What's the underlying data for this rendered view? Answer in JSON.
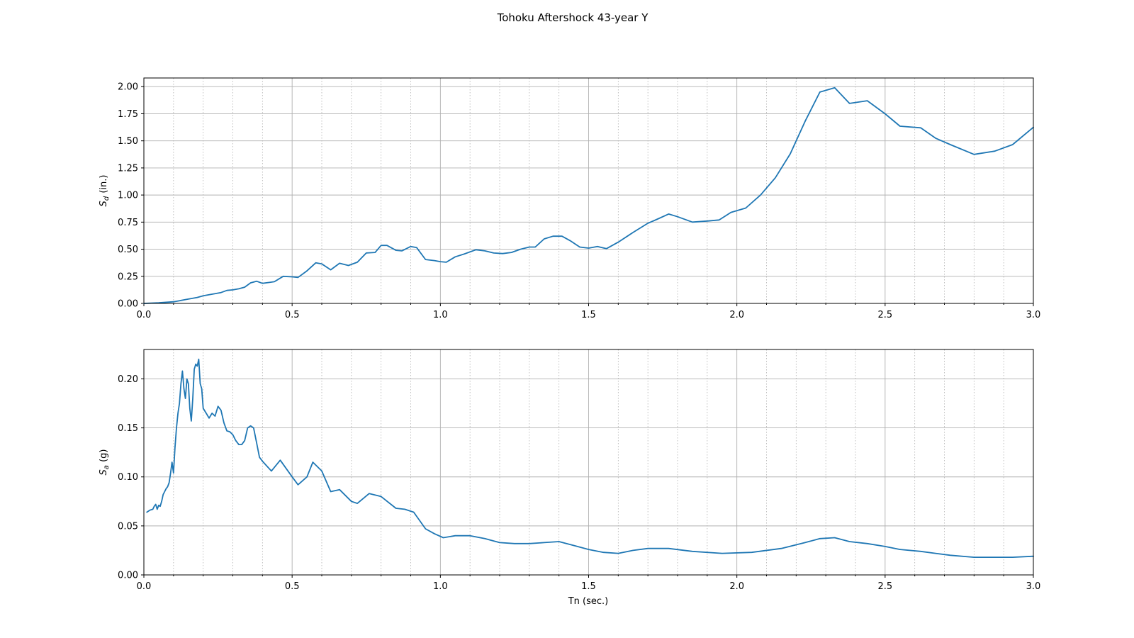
{
  "figure": {
    "title": "Tohoku Aftershock 43-year Y"
  },
  "chart_data": [
    {
      "type": "line",
      "ylabel_symbol": "S",
      "ylabel_sub": "d",
      "ylabel_unit": " (in.)",
      "xlabel": "",
      "xlim": [
        0.0,
        3.0
      ],
      "ylim": [
        0.0,
        2.08
      ],
      "xticks": [
        0.0,
        0.5,
        1.0,
        1.5,
        2.0,
        2.5,
        3.0
      ],
      "xtick_labels": [
        "0.0",
        "0.5",
        "1.0",
        "1.5",
        "2.0",
        "2.5",
        "3.0"
      ],
      "yticks": [
        0.0,
        0.25,
        0.5,
        0.75,
        1.0,
        1.25,
        1.5,
        1.75,
        2.0
      ],
      "ytick_labels": [
        "0.00",
        "0.25",
        "0.50",
        "0.75",
        "1.00",
        "1.25",
        "1.50",
        "1.75",
        "2.00"
      ],
      "grid": true,
      "minor_grid_x": true,
      "color": "#1f77b4",
      "x": [
        0.0,
        0.05,
        0.1,
        0.12,
        0.14,
        0.16,
        0.18,
        0.2,
        0.22,
        0.24,
        0.26,
        0.28,
        0.3,
        0.32,
        0.34,
        0.36,
        0.38,
        0.4,
        0.44,
        0.47,
        0.5,
        0.52,
        0.55,
        0.58,
        0.6,
        0.63,
        0.66,
        0.69,
        0.72,
        0.75,
        0.78,
        0.8,
        0.82,
        0.85,
        0.87,
        0.9,
        0.92,
        0.95,
        0.98,
        1.0,
        1.02,
        1.05,
        1.08,
        1.12,
        1.15,
        1.18,
        1.21,
        1.24,
        1.27,
        1.3,
        1.32,
        1.35,
        1.38,
        1.41,
        1.44,
        1.47,
        1.5,
        1.53,
        1.56,
        1.6,
        1.65,
        1.7,
        1.73,
        1.77,
        1.8,
        1.85,
        1.9,
        1.94,
        1.98,
        2.03,
        2.08,
        2.13,
        2.18,
        2.23,
        2.28,
        2.33,
        2.38,
        2.44,
        2.5,
        2.55,
        2.62,
        2.67,
        2.72,
        2.8,
        2.87,
        2.93,
        3.0
      ],
      "y": [
        0.0,
        0.005,
        0.015,
        0.025,
        0.035,
        0.045,
        0.055,
        0.07,
        0.08,
        0.09,
        0.1,
        0.12,
        0.125,
        0.135,
        0.15,
        0.19,
        0.205,
        0.185,
        0.2,
        0.25,
        0.245,
        0.24,
        0.3,
        0.375,
        0.365,
        0.31,
        0.37,
        0.35,
        0.38,
        0.465,
        0.47,
        0.535,
        0.535,
        0.49,
        0.485,
        0.525,
        0.515,
        0.405,
        0.395,
        0.385,
        0.38,
        0.43,
        0.455,
        0.495,
        0.485,
        0.465,
        0.46,
        0.47,
        0.5,
        0.52,
        0.52,
        0.595,
        0.62,
        0.62,
        0.575,
        0.52,
        0.51,
        0.525,
        0.505,
        0.565,
        0.655,
        0.74,
        0.775,
        0.825,
        0.8,
        0.75,
        0.76,
        0.77,
        0.84,
        0.88,
        1.0,
        1.16,
        1.38,
        1.68,
        1.95,
        1.99,
        1.845,
        1.87,
        1.75,
        1.635,
        1.62,
        1.525,
        1.465,
        1.375,
        1.405,
        1.465,
        1.625
      ]
    },
    {
      "type": "line",
      "ylabel_symbol": "S",
      "ylabel_sub": "a",
      "ylabel_unit": " (g)",
      "xlabel": "Tn (sec.)",
      "xlim": [
        0.0,
        3.0
      ],
      "ylim": [
        0.0,
        0.23
      ],
      "xticks": [
        0.0,
        0.5,
        1.0,
        1.5,
        2.0,
        2.5,
        3.0
      ],
      "xtick_labels": [
        "0.0",
        "0.5",
        "1.0",
        "1.5",
        "2.0",
        "2.5",
        "3.0"
      ],
      "yticks": [
        0.0,
        0.05,
        0.1,
        0.15,
        0.2
      ],
      "ytick_labels": [
        "0.00",
        "0.05",
        "0.10",
        "0.15",
        "0.20"
      ],
      "grid": true,
      "minor_grid_x": true,
      "color": "#1f77b4",
      "x": [
        0.01,
        0.02,
        0.03,
        0.035,
        0.04,
        0.045,
        0.05,
        0.055,
        0.06,
        0.065,
        0.07,
        0.075,
        0.08,
        0.085,
        0.09,
        0.095,
        0.1,
        0.105,
        0.11,
        0.115,
        0.12,
        0.125,
        0.13,
        0.135,
        0.14,
        0.145,
        0.15,
        0.155,
        0.16,
        0.165,
        0.17,
        0.175,
        0.18,
        0.185,
        0.19,
        0.195,
        0.2,
        0.21,
        0.22,
        0.23,
        0.24,
        0.25,
        0.26,
        0.27,
        0.28,
        0.29,
        0.3,
        0.31,
        0.32,
        0.33,
        0.34,
        0.35,
        0.36,
        0.37,
        0.38,
        0.39,
        0.4,
        0.43,
        0.46,
        0.5,
        0.52,
        0.55,
        0.57,
        0.6,
        0.63,
        0.66,
        0.7,
        0.72,
        0.76,
        0.8,
        0.85,
        0.88,
        0.91,
        0.95,
        0.98,
        1.01,
        1.05,
        1.1,
        1.15,
        1.2,
        1.25,
        1.3,
        1.35,
        1.4,
        1.45,
        1.5,
        1.55,
        1.6,
        1.65,
        1.7,
        1.77,
        1.85,
        1.95,
        2.05,
        2.15,
        2.23,
        2.28,
        2.33,
        2.38,
        2.44,
        2.5,
        2.55,
        2.62,
        2.67,
        2.72,
        2.8,
        2.87,
        2.93,
        3.0
      ],
      "y": [
        0.064,
        0.066,
        0.067,
        0.07,
        0.072,
        0.067,
        0.071,
        0.07,
        0.075,
        0.082,
        0.085,
        0.088,
        0.09,
        0.094,
        0.104,
        0.115,
        0.104,
        0.13,
        0.15,
        0.165,
        0.175,
        0.195,
        0.208,
        0.19,
        0.18,
        0.2,
        0.195,
        0.17,
        0.157,
        0.18,
        0.21,
        0.215,
        0.213,
        0.22,
        0.195,
        0.19,
        0.17,
        0.165,
        0.16,
        0.165,
        0.162,
        0.172,
        0.168,
        0.155,
        0.147,
        0.146,
        0.143,
        0.137,
        0.133,
        0.133,
        0.137,
        0.15,
        0.152,
        0.15,
        0.135,
        0.12,
        0.116,
        0.106,
        0.117,
        0.1,
        0.092,
        0.1,
        0.115,
        0.106,
        0.085,
        0.087,
        0.075,
        0.073,
        0.083,
        0.08,
        0.068,
        0.067,
        0.064,
        0.047,
        0.042,
        0.038,
        0.04,
        0.04,
        0.037,
        0.033,
        0.032,
        0.032,
        0.033,
        0.034,
        0.03,
        0.026,
        0.023,
        0.022,
        0.025,
        0.027,
        0.027,
        0.024,
        0.022,
        0.023,
        0.027,
        0.033,
        0.037,
        0.038,
        0.034,
        0.032,
        0.029,
        0.026,
        0.024,
        0.022,
        0.02,
        0.018,
        0.018,
        0.018,
        0.019
      ]
    }
  ]
}
